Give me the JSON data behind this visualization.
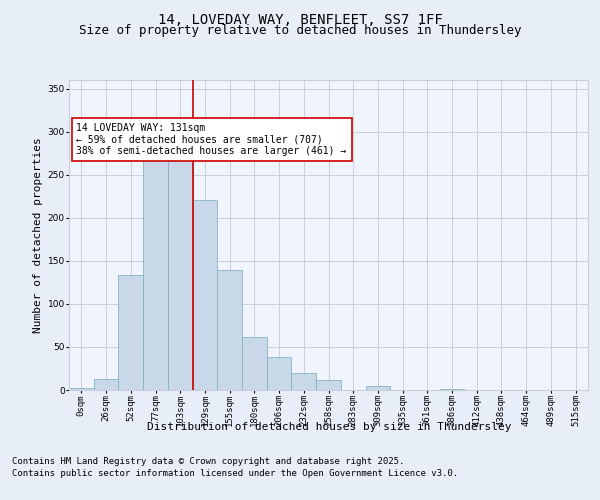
{
  "title": "14, LOVEDAY WAY, BENFLEET, SS7 1FF",
  "subtitle": "Size of property relative to detached houses in Thundersley",
  "xlabel": "Distribution of detached houses by size in Thundersley",
  "ylabel": "Number of detached properties",
  "categories": [
    "0sqm",
    "26sqm",
    "52sqm",
    "77sqm",
    "103sqm",
    "129sqm",
    "155sqm",
    "180sqm",
    "206sqm",
    "232sqm",
    "258sqm",
    "283sqm",
    "309sqm",
    "335sqm",
    "361sqm",
    "386sqm",
    "412sqm",
    "438sqm",
    "464sqm",
    "489sqm",
    "515sqm"
  ],
  "bar_heights": [
    2,
    13,
    133,
    270,
    293,
    221,
    139,
    62,
    38,
    20,
    12,
    0,
    5,
    0,
    0,
    1,
    0,
    0,
    0,
    0,
    0
  ],
  "bar_color": "#c8d8e8",
  "bar_edge_color": "#7aaabb",
  "vline_color": "#cc0000",
  "annotation_text": "14 LOVEDAY WAY: 131sqm\n← 59% of detached houses are smaller (707)\n38% of semi-detached houses are larger (461) →",
  "annotation_box_color": "#ffffff",
  "annotation_box_edge": "#cc0000",
  "ylim": [
    0,
    360
  ],
  "yticks": [
    0,
    50,
    100,
    150,
    200,
    250,
    300,
    350
  ],
  "footer_line1": "Contains HM Land Registry data © Crown copyright and database right 2025.",
  "footer_line2": "Contains public sector information licensed under the Open Government Licence v3.0.",
  "bg_color": "#e8eef8",
  "plot_bg_color": "#f0f4fc",
  "grid_color": "#c8cedd",
  "title_fontsize": 10,
  "subtitle_fontsize": 9,
  "ylabel_fontsize": 8,
  "tick_fontsize": 6.5,
  "footer_fontsize": 6.5
}
